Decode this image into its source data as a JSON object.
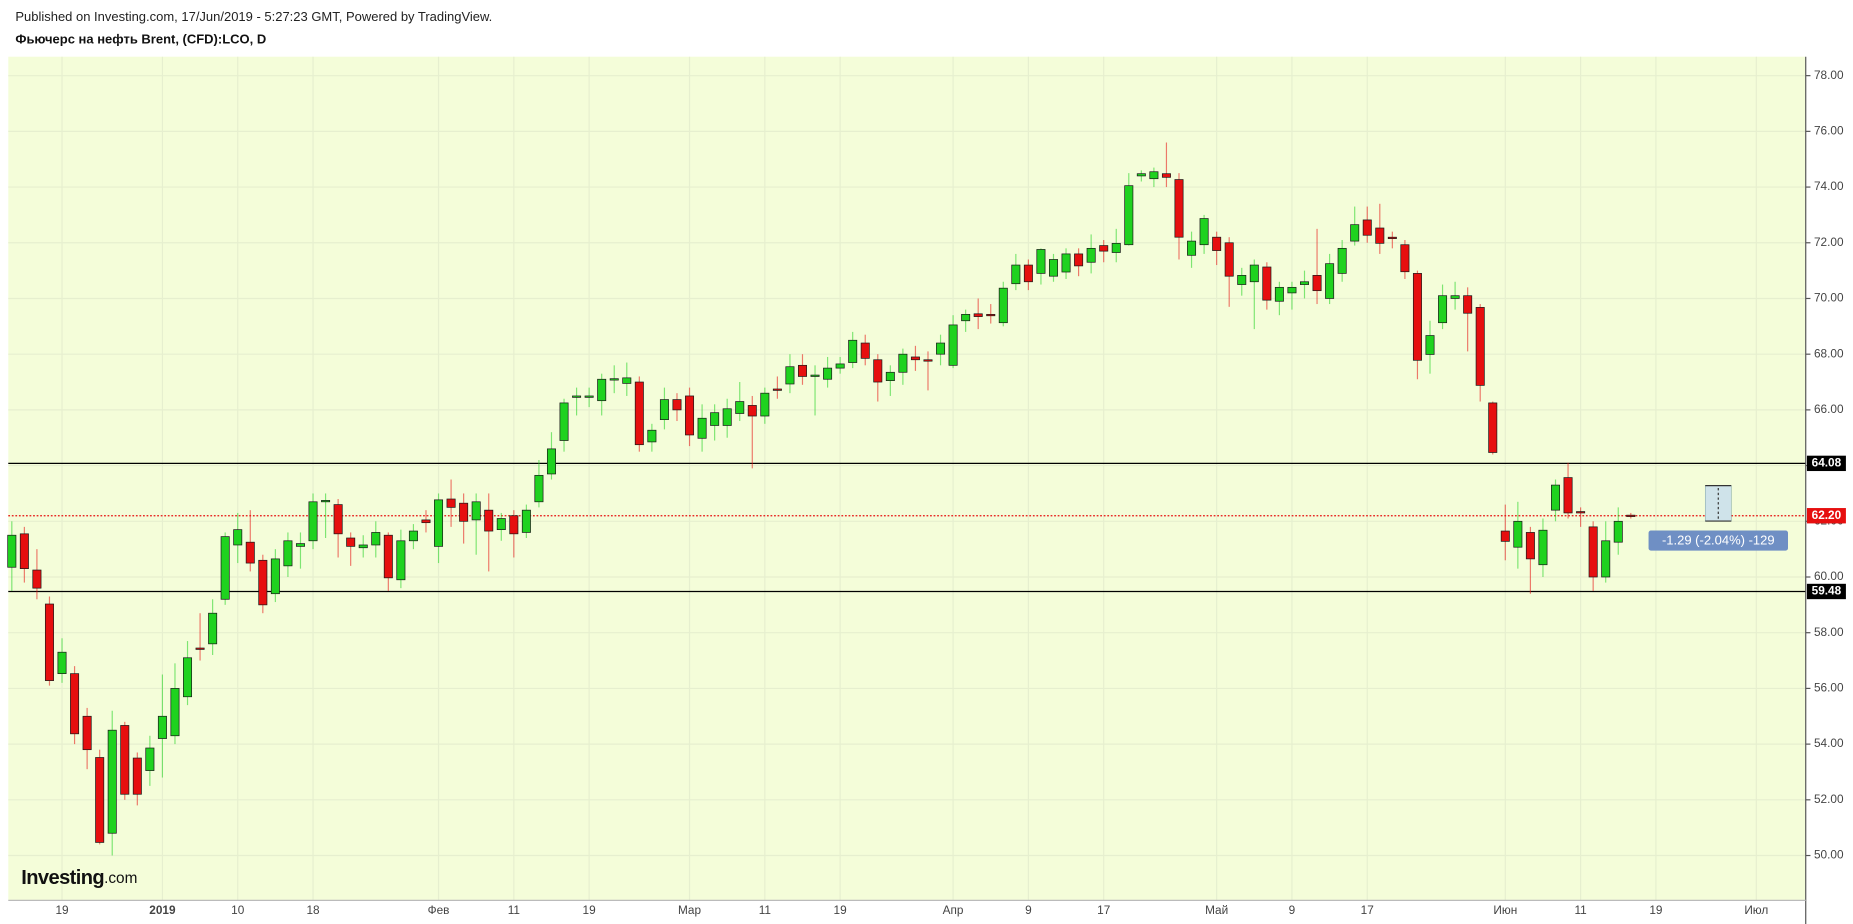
{
  "header": {
    "published": "Published on Investing.com, 17/Jun/2019 - 5:27:23 GMT, Powered by TradingView."
  },
  "logo": {
    "brand": "Investing",
    "suffix": ".com"
  },
  "chart_data": {
    "type": "candlestick",
    "title": "Фьючерс на нефть Brent, (CFD):LCO, D",
    "categories": [
      null,
      null,
      null,
      null,
      "19",
      null,
      null,
      null,
      null,
      null,
      null,
      null,
      "2019",
      null,
      null,
      null,
      null,
      null,
      "10",
      null,
      null,
      null,
      null,
      null,
      "18",
      null,
      null,
      null,
      null,
      null,
      null,
      null,
      null,
      null,
      "Фев",
      null,
      null,
      null,
      null,
      null,
      "11",
      null,
      null,
      null,
      null,
      null,
      "19",
      null,
      null,
      null,
      null,
      null,
      null,
      null,
      "Мар",
      null,
      null,
      null,
      null,
      null,
      "11",
      null,
      null,
      null,
      null,
      null,
      "19",
      null,
      null,
      null,
      null,
      null,
      null,
      null,
      null,
      "Апр",
      null,
      null,
      null,
      null,
      null,
      "9",
      null,
      null,
      null,
      null,
      null,
      "17",
      null,
      null,
      null,
      null,
      null,
      null,
      null,
      null,
      "Май",
      null,
      null,
      null,
      null,
      null,
      "9",
      null,
      null,
      null,
      null,
      null,
      "17",
      null,
      null,
      null,
      null,
      null,
      null,
      null,
      null,
      null,
      null,
      "Июн",
      null,
      null,
      null,
      null,
      null,
      "11",
      null,
      null,
      null,
      null,
      null,
      "19",
      null,
      null,
      null,
      null,
      null,
      null,
      null,
      "Июл",
      null,
      null,
      null
    ],
    "open": [
      60.35,
      61.55,
      60.25,
      59.03,
      56.53,
      56.53,
      55.0,
      53.52,
      50.8,
      54.67,
      53.5,
      53.05,
      54.2,
      54.3,
      55.7,
      57.45,
      57.6,
      59.2,
      61.15,
      61.25,
      60.6,
      59.4,
      60.4,
      61.1,
      61.3,
      62.7,
      62.6,
      61.4,
      61.05,
      61.15,
      61.5,
      59.9,
      61.3,
      62.05,
      61.1,
      62.8,
      62.65,
      62.05,
      62.4,
      61.7,
      62.2,
      61.6,
      62.7,
      63.7,
      64.9,
      66.45,
      66.45,
      66.33,
      67.1,
      66.95,
      67.0,
      64.85,
      65.65,
      66.37,
      66.5,
      64.98,
      65.44,
      65.44,
      65.87,
      66.16,
      65.78,
      66.75,
      66.93,
      67.6,
      67.2,
      67.1,
      67.5,
      67.7,
      68.4,
      67.8,
      67.05,
      67.35,
      67.9,
      67.8,
      68.0,
      67.6,
      69.2,
      69.45,
      69.43,
      69.13,
      70.53,
      71.2,
      70.9,
      70.8,
      70.95,
      71.6,
      71.3,
      71.9,
      71.65,
      71.93,
      74.4,
      74.3,
      74.48,
      74.27,
      71.55,
      71.93,
      72.2,
      72.0,
      70.5,
      70.6,
      71.13,
      69.9,
      70.2,
      70.5,
      70.83,
      70.0,
      70.9,
      72.06,
      72.82,
      72.53,
      72.2,
      71.93,
      70.9,
      67.99,
      69.13,
      70.0,
      70.1,
      69.68,
      66.25,
      61.65,
      61.07,
      61.6,
      60.44,
      62.4,
      63.57,
      62.35,
      61.8,
      60.0,
      61.25,
      62.22,
      null,
      null,
      null,
      null,
      null,
      null,
      null,
      null,
      null,
      null,
      null,
      null,
      null
    ],
    "high": [
      62.0,
      61.8,
      61.0,
      59.3,
      57.8,
      56.8,
      55.3,
      53.8,
      55.2,
      54.8,
      53.7,
      54.3,
      56.5,
      56.9,
      57.7,
      58.7,
      59.2,
      61.6,
      62.3,
      62.4,
      60.8,
      61.0,
      61.6,
      61.6,
      63.0,
      63.0,
      62.8,
      61.6,
      61.5,
      62.0,
      61.6,
      61.7,
      61.9,
      62.4,
      63.0,
      63.5,
      63.0,
      63.0,
      63.0,
      62.3,
      62.4,
      62.6,
      64.2,
      65.2,
      66.4,
      66.8,
      66.8,
      67.3,
      67.6,
      67.7,
      67.2,
      65.5,
      66.8,
      66.6,
      66.8,
      66.2,
      66.2,
      66.4,
      67.0,
      66.5,
      66.8,
      67.2,
      68.0,
      68.0,
      67.6,
      67.9,
      67.9,
      68.8,
      68.7,
      68.0,
      67.6,
      68.2,
      68.3,
      68.1,
      68.7,
      69.4,
      69.6,
      70.0,
      69.8,
      70.6,
      71.6,
      71.4,
      71.8,
      71.6,
      71.8,
      71.8,
      72.3,
      72.1,
      72.5,
      74.5,
      74.6,
      74.7,
      75.6,
      74.5,
      72.4,
      73.0,
      72.4,
      72.2,
      71.1,
      71.4,
      71.3,
      70.6,
      70.6,
      71.0,
      72.5,
      71.6,
      72.1,
      73.3,
      73.3,
      73.4,
      72.4,
      72.1,
      71.0,
      69.2,
      70.5,
      70.6,
      70.4,
      69.8,
      66.3,
      62.6,
      62.7,
      61.8,
      62.1,
      63.5,
      64.1,
      62.5,
      62.0,
      62.0,
      62.5,
      62.3,
      null,
      null,
      null,
      null,
      null,
      null,
      null,
      null,
      null,
      null,
      null,
      null,
      null
    ],
    "low": [
      59.5,
      59.8,
      59.2,
      56.1,
      56.2,
      54.0,
      53.1,
      50.4,
      50.0,
      52.0,
      51.8,
      52.5,
      52.8,
      54.0,
      55.4,
      57.0,
      57.2,
      59.0,
      60.5,
      60.2,
      58.7,
      59.1,
      60.0,
      60.3,
      61.0,
      61.4,
      60.7,
      60.4,
      60.7,
      60.7,
      59.5,
      59.6,
      61.0,
      61.6,
      60.5,
      61.8,
      61.2,
      60.8,
      60.2,
      61.3,
      60.7,
      61.4,
      62.5,
      63.5,
      64.5,
      65.8,
      66.1,
      65.8,
      66.6,
      66.5,
      64.5,
      64.5,
      65.3,
      65.6,
      64.7,
      64.5,
      64.9,
      65.0,
      65.6,
      63.9,
      65.5,
      66.4,
      66.6,
      66.9,
      65.8,
      66.8,
      67.3,
      67.5,
      67.6,
      66.3,
      66.5,
      66.9,
      67.4,
      66.7,
      67.6,
      67.5,
      68.8,
      68.9,
      69.1,
      69.0,
      70.3,
      70.3,
      70.5,
      70.6,
      70.7,
      70.8,
      70.9,
      71.3,
      71.3,
      71.9,
      74.2,
      74.0,
      74.0,
      71.4,
      71.1,
      71.6,
      71.2,
      69.7,
      70.1,
      68.9,
      69.6,
      69.4,
      69.6,
      70.0,
      69.8,
      69.8,
      70.6,
      71.9,
      72.0,
      71.6,
      71.8,
      70.7,
      67.1,
      67.3,
      68.9,
      69.6,
      68.1,
      66.3,
      64.4,
      60.6,
      60.3,
      59.4,
      60.0,
      62.0,
      62.1,
      61.8,
      59.5,
      59.8,
      60.8,
      62.1,
      null,
      null,
      null,
      null,
      null,
      null,
      null,
      null,
      null,
      null,
      null,
      null,
      null
    ],
    "close": [
      61.5,
      60.3,
      59.6,
      56.28,
      57.3,
      54.37,
      53.8,
      50.47,
      54.5,
      52.2,
      52.2,
      53.86,
      55.0,
      56.0,
      57.1,
      57.4,
      58.7,
      61.45,
      61.7,
      60.5,
      59.0,
      60.65,
      61.3,
      61.2,
      62.7,
      62.75,
      61.55,
      61.1,
      61.15,
      61.6,
      59.97,
      61.3,
      61.65,
      61.95,
      62.77,
      62.5,
      62.0,
      62.7,
      61.65,
      62.1,
      61.55,
      62.4,
      63.65,
      64.6,
      66.25,
      66.5,
      66.5,
      67.1,
      67.12,
      67.15,
      64.75,
      65.27,
      66.37,
      66.0,
      65.1,
      65.7,
      65.9,
      66.04,
      66.3,
      65.78,
      66.6,
      66.7,
      67.55,
      67.2,
      67.25,
      67.5,
      67.65,
      68.5,
      67.85,
      67.0,
      67.35,
      68.0,
      67.8,
      67.75,
      68.4,
      69.05,
      69.43,
      69.35,
      69.4,
      70.37,
      71.2,
      70.6,
      71.76,
      71.4,
      71.6,
      71.17,
      71.8,
      71.7,
      71.98,
      74.05,
      74.48,
      74.55,
      74.35,
      72.2,
      72.06,
      72.87,
      71.72,
      70.8,
      70.83,
      71.2,
      69.94,
      70.4,
      70.4,
      70.6,
      70.28,
      71.25,
      71.8,
      72.65,
      72.27,
      71.98,
      72.15,
      70.96,
      67.78,
      68.67,
      70.1,
      70.1,
      69.47,
      66.88,
      64.47,
      61.28,
      62.0,
      60.65,
      61.68,
      63.3,
      62.3,
      62.3,
      60.0,
      61.3,
      62.0,
      62.2,
      null,
      null,
      null,
      null,
      null,
      null,
      null,
      null,
      null,
      null,
      null,
      null,
      null
    ],
    "up_color": "#1fd21f",
    "down_color": "#e60f0f",
    "ylim": [
      48.39,
      78.68
    ],
    "yticks": [
      {
        "value": 50,
        "label": "50.00"
      },
      {
        "value": 52,
        "label": "52.00"
      },
      {
        "value": 54,
        "label": "54.00"
      },
      {
        "value": 56,
        "label": "56.00"
      },
      {
        "value": 58,
        "label": "58.00"
      },
      {
        "value": 60,
        "label": "60.00"
      },
      {
        "value": 62,
        "label": "62.00"
      },
      {
        "value": 64,
        "label": "64.00"
      },
      {
        "value": 66,
        "label": "66.00"
      },
      {
        "value": 68,
        "label": "68.00"
      },
      {
        "value": 70,
        "label": "70.00"
      },
      {
        "value": 72,
        "label": "72.00"
      },
      {
        "value": 74,
        "label": "74.00"
      },
      {
        "value": 76,
        "label": "76.00"
      },
      {
        "value": 78,
        "label": "78.00"
      }
    ],
    "levels": [
      {
        "value": 64.08,
        "label": "64.08",
        "color": "#000000",
        "dotted": false
      },
      {
        "value": 62.2,
        "label": "62.20",
        "color": "#e60f0f",
        "dotted": true
      },
      {
        "value": 59.48,
        "label": "59.48",
        "color": "#000000",
        "dotted": false
      }
    ],
    "measure_label": "-1.29 (-2.04%) -129",
    "grid": true
  }
}
